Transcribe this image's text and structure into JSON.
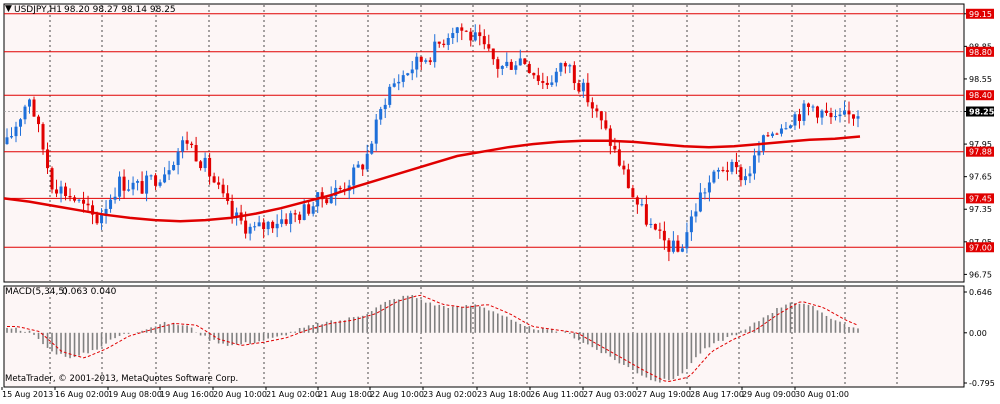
{
  "colors": {
    "background": "#ffffff",
    "plot_bg": "#fdf6f6",
    "border": "#000000",
    "grid": "#000000",
    "hline": "#e00000",
    "bull": "#1e6fd9",
    "bear": "#e00000",
    "ma": "#e00000",
    "macd_hist": "#808080",
    "macd_signal": "#e00000",
    "text": "#000000",
    "current_price_bg": "#000000",
    "current_price_fg": "#ffffff"
  },
  "header": {
    "symbol_tf": "USDJPY,H1",
    "ohlc": "98.20 98.27 98.14 98.25"
  },
  "footer": {
    "copyright": "MetaTrader, © 2001-2013, MetaQuotes Software Corp."
  },
  "chart_data": [
    {
      "type": "candlestick",
      "symbol": "USDJPY",
      "timeframe": "H1",
      "x_tick_labels": [
        "15 Aug 2013",
        "16 Aug 02:00",
        "19 Aug 08:00",
        "19 Aug 16:00",
        "20 Aug 10:00",
        "21 Aug 02:00",
        "21 Aug 18:00",
        "22 Aug 10:00",
        "23 Aug 02:00",
        "23 Aug 18:00",
        "26 Aug 11:00",
        "27 Aug 03:00",
        "27 Aug 19:00",
        "28 Aug 17:00",
        "29 Aug 09:00",
        "30 Aug 01:00"
      ],
      "y_tick_labels": [
        96.75,
        97.05,
        97.35,
        97.65,
        97.95,
        98.25,
        98.55,
        98.85,
        99.15
      ],
      "ylim": [
        96.68,
        99.24
      ],
      "price_lines": [
        99.15,
        98.8,
        98.4,
        97.88,
        97.45,
        97.0
      ],
      "current_price": 98.25,
      "grid": "vertical-dotted",
      "ma_points": [
        97.45,
        97.42,
        97.38,
        97.34,
        97.3,
        97.27,
        97.25,
        97.24,
        97.25,
        97.27,
        97.31,
        97.36,
        97.42,
        97.48,
        97.56,
        97.63,
        97.7,
        97.77,
        97.84,
        97.88,
        97.92,
        97.95,
        97.97,
        97.98,
        97.98,
        97.97,
        97.95,
        97.93,
        97.92,
        97.93,
        97.95,
        97.97,
        97.99,
        98.0,
        98.02
      ],
      "anchors": [
        97.95,
        98.4,
        97.6,
        97.45,
        97.25,
        97.6,
        97.55,
        97.7,
        98.0,
        97.7,
        97.3,
        97.15,
        97.25,
        97.3,
        97.45,
        97.55,
        97.8,
        98.45,
        98.65,
        98.8,
        99.05,
        98.9,
        98.65,
        98.75,
        98.5,
        98.7,
        98.35,
        97.95,
        97.45,
        97.1,
        96.95,
        97.5,
        97.75,
        97.65,
        98.05,
        98.2,
        98.3,
        98.15,
        98.25
      ]
    },
    {
      "type": "bar",
      "indicator": "MACD(5,34,5)",
      "values_label": "0.063 0.040",
      "y_tick_labels": [
        "0.646",
        "0.00",
        "-0.795"
      ],
      "ylim": [
        -0.795,
        0.646
      ],
      "anchors": [
        0.1,
        0.02,
        -0.3,
        -0.4,
        -0.25,
        -0.05,
        0.05,
        0.15,
        0.12,
        -0.1,
        -0.2,
        -0.15,
        -0.08,
        0.05,
        0.15,
        0.2,
        0.3,
        0.5,
        0.6,
        0.45,
        0.4,
        0.45,
        0.3,
        0.1,
        0.05,
        0.0,
        -0.2,
        -0.4,
        -0.6,
        -0.78,
        -0.7,
        -0.3,
        -0.1,
        0.05,
        0.3,
        0.5,
        0.4,
        0.2,
        0.05
      ],
      "signal": "dashed"
    }
  ]
}
